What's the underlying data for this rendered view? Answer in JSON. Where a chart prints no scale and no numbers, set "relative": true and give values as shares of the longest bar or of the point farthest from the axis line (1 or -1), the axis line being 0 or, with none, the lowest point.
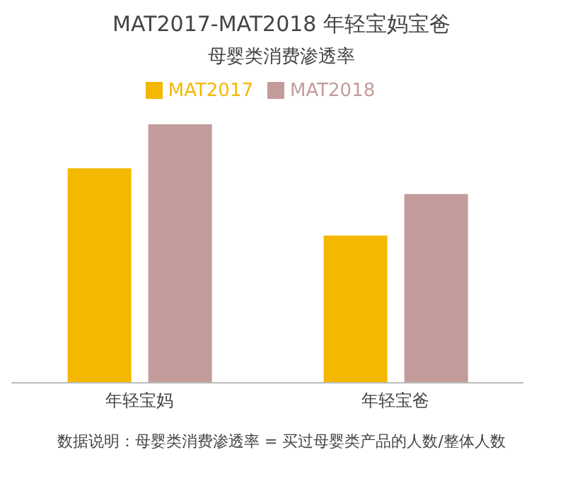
{
  "chart_data": {
    "type": "bar",
    "title": "MAT2017-MAT2018 年轻宝妈宝爸",
    "subtitle": "母婴类消费渗透率",
    "categories": [
      "年轻宝妈",
      "年轻宝爸"
    ],
    "relative": true,
    "legend": "top",
    "series": [
      {
        "name": "MAT2017",
        "color": "#f5b800",
        "values": [
          0.83,
          0.57
        ]
      },
      {
        "name": "MAT2018",
        "color": "#c39b9b",
        "values": [
          1,
          0.73
        ]
      }
    ],
    "annotations": [
      "数据说明：母婴类消费渗透率 = 买过母婴类产品的人数/整体人数"
    ]
  }
}
